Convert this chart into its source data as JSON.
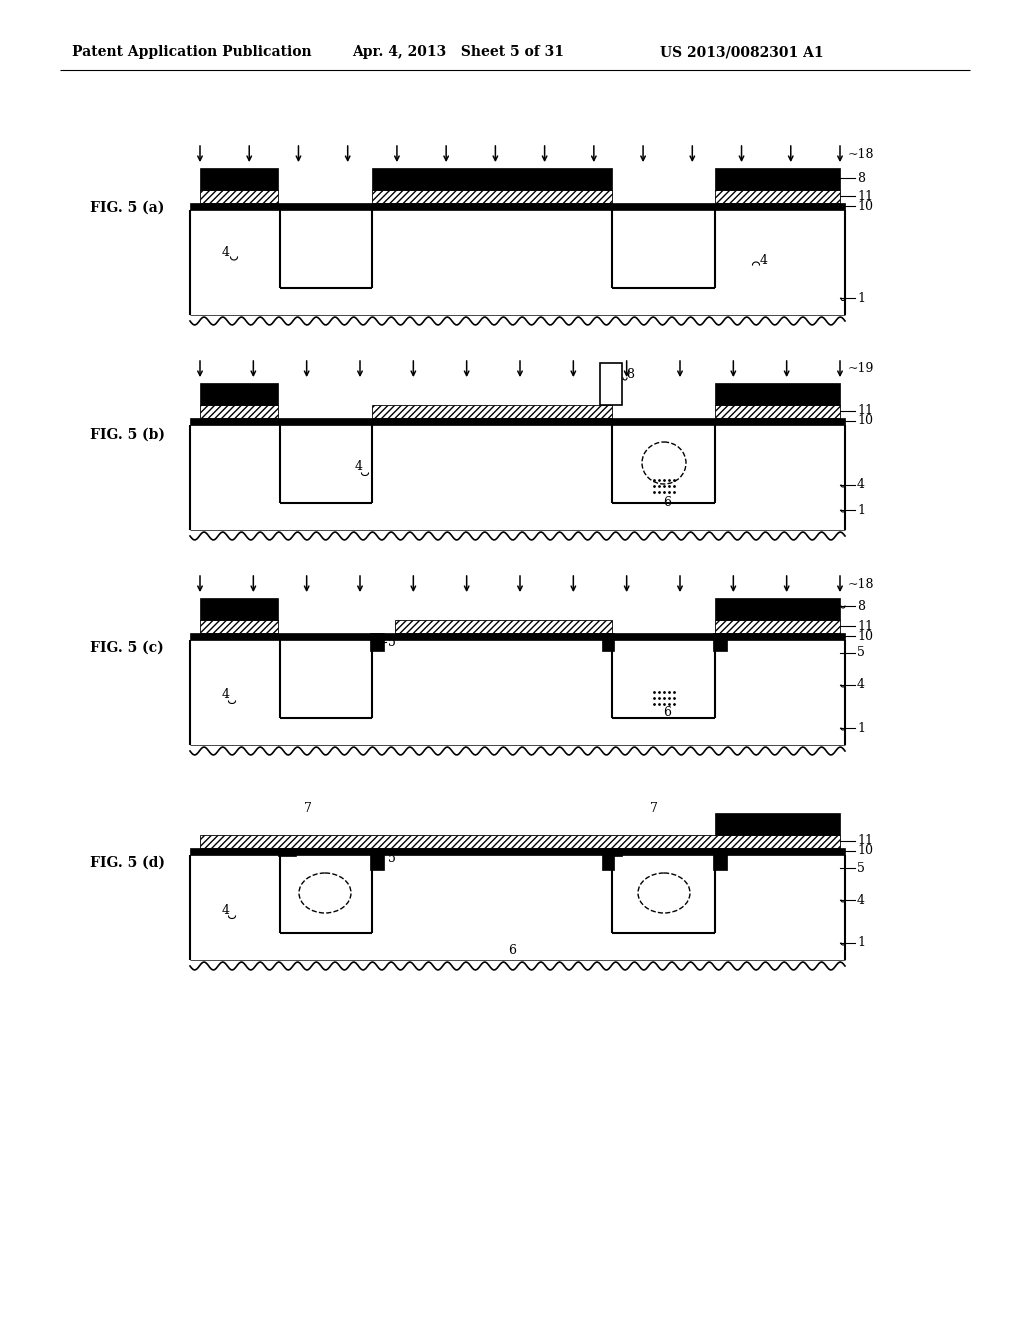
{
  "header_left": "Patent Application Publication",
  "header_mid": "Apr. 4, 2013   Sheet 5 of 31",
  "header_right": "US 2013/0082301 A1",
  "background": "#ffffff",
  "fig_a_label": "FIG. 5 (a)",
  "fig_b_label": "FIG. 5 (b)",
  "fig_c_label": "FIG. 5 (c)",
  "fig_d_label": "FIG. 5 (d)",
  "arrow_label_18": "18",
  "arrow_label_19": "19"
}
